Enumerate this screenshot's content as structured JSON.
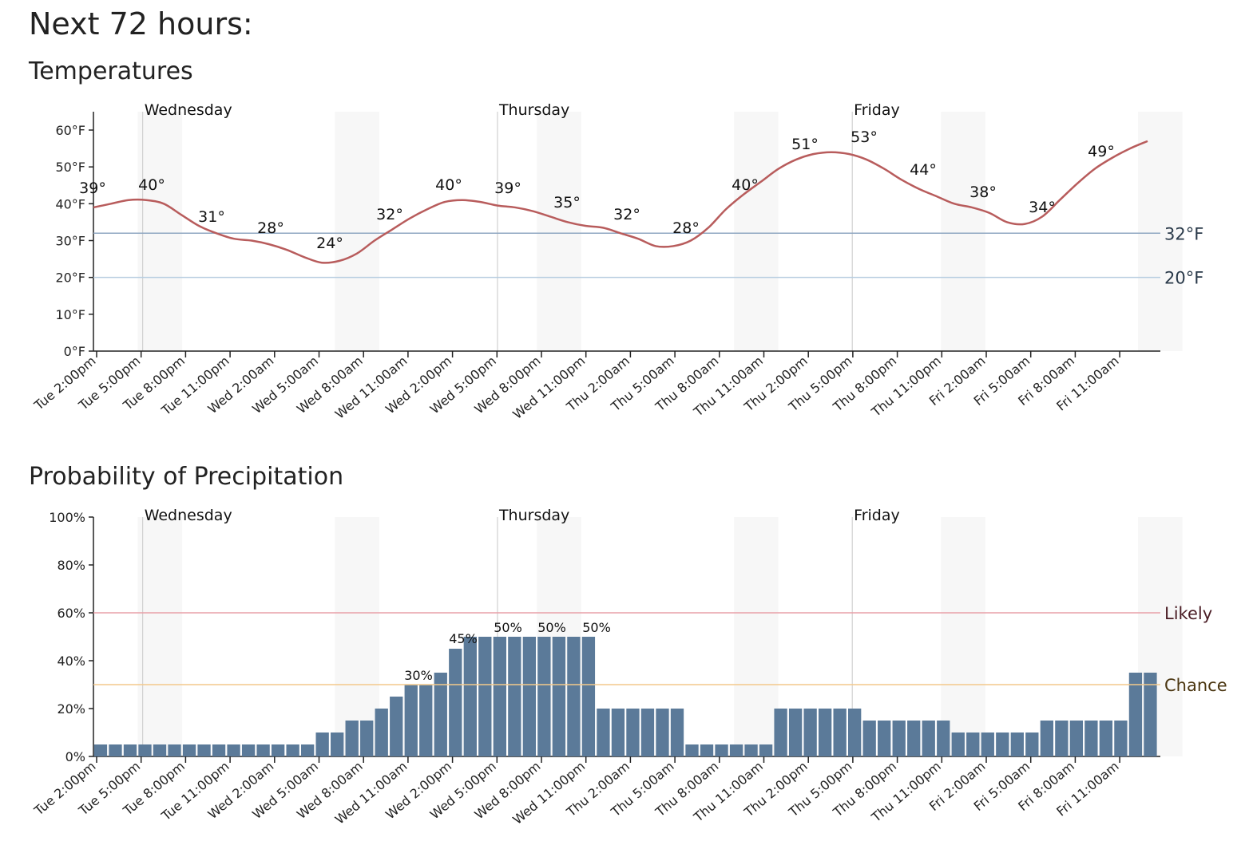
{
  "page": {
    "title": "Next 72 hours:"
  },
  "chart_data": [
    {
      "type": "line",
      "title": "Temperatures",
      "xlabel": "",
      "ylabel": "",
      "ylim": [
        0,
        60
      ],
      "y_ticks": [
        "0°F",
        "10°F",
        "20°F",
        "30°F",
        "40°F",
        "50°F",
        "60°F"
      ],
      "x_tick_labels": [
        "Tue 2:00pm",
        "Tue 5:00pm",
        "Tue 8:00pm",
        "Tue 11:00pm",
        "Wed 2:00am",
        "Wed 5:00am",
        "Wed 8:00am",
        "Wed 11:00am",
        "Wed 2:00pm",
        "Wed 5:00pm",
        "Wed 8:00pm",
        "Wed 11:00pm",
        "Thu 2:00am",
        "Thu 5:00am",
        "Thu 8:00am",
        "Thu 11:00am",
        "Thu 2:00pm",
        "Thu 5:00pm",
        "Thu 8:00pm",
        "Thu 11:00pm",
        "Fri 2:00am",
        "Fri 5:00am",
        "Fri 8:00am",
        "Fri 11:00am"
      ],
      "day_labels": [
        "Wednesday",
        "Thursday",
        "Friday"
      ],
      "series": [
        {
          "values": [
            39,
            40,
            41,
            41,
            40,
            37,
            34,
            32,
            30.5,
            30,
            29,
            27.5,
            25.5,
            24,
            24.5,
            26.5,
            30,
            33,
            36,
            38.5,
            40.5,
            41,
            40.5,
            39.5,
            39,
            38,
            36.5,
            35,
            34,
            33.5,
            32,
            30.5,
            28.5,
            28.5,
            30,
            33.5,
            38.5,
            42.5,
            46,
            49.5,
            52,
            53.5,
            54,
            53.5,
            52,
            49.5,
            46.5,
            44,
            42,
            40,
            39,
            37.5,
            35,
            34.5,
            36.5,
            41,
            45.5,
            49.5,
            52.5,
            55,
            57
          ]
        }
      ],
      "annotations": [
        "39°",
        "40°",
        "31°",
        "28°",
        "24°",
        "32°",
        "40°",
        "39°",
        "35°",
        "32°",
        "28°",
        "40°",
        "51°",
        "53°",
        "44°",
        "38°",
        "34°",
        "49°"
      ],
      "reference_lines": [
        {
          "value": 32,
          "label": "32°F",
          "color": "#8fa7c2"
        },
        {
          "value": 20,
          "label": "20°F",
          "color": "#b6cde0"
        }
      ],
      "line_color": "#b85c5c",
      "grid": false
    },
    {
      "type": "bar",
      "title": "Probability of Precipitation",
      "xlabel": "",
      "ylabel": "",
      "ylim": [
        0,
        100
      ],
      "y_ticks": [
        "0%",
        "20%",
        "40%",
        "60%",
        "80%",
        "100%"
      ],
      "x_tick_labels": [
        "Tue 2:00pm",
        "Tue 5:00pm",
        "Tue 8:00pm",
        "Tue 11:00pm",
        "Wed 2:00am",
        "Wed 5:00am",
        "Wed 8:00am",
        "Wed 11:00am",
        "Wed 2:00pm",
        "Wed 5:00pm",
        "Wed 8:00pm",
        "Wed 11:00pm",
        "Thu 2:00am",
        "Thu 5:00am",
        "Thu 8:00am",
        "Thu 11:00am",
        "Thu 2:00pm",
        "Thu 5:00pm",
        "Thu 8:00pm",
        "Thu 11:00pm",
        "Fri 2:00am",
        "Fri 5:00am",
        "Fri 8:00am",
        "Fri 11:00am"
      ],
      "day_labels": [
        "Wednesday",
        "Thursday",
        "Friday"
      ],
      "values": [
        5,
        5,
        5,
        5,
        5,
        5,
        5,
        5,
        5,
        5,
        5,
        5,
        5,
        5,
        5,
        10,
        10,
        15,
        15,
        20,
        25,
        30,
        30,
        35,
        45,
        50,
        50,
        50,
        50,
        50,
        50,
        50,
        50,
        50,
        20,
        20,
        20,
        20,
        20,
        20,
        5,
        5,
        5,
        5,
        5,
        5,
        20,
        20,
        20,
        20,
        20,
        20,
        15,
        15,
        15,
        15,
        15,
        15,
        10,
        10,
        10,
        10,
        10,
        10,
        15,
        15,
        15,
        15,
        15,
        15,
        35,
        35
      ],
      "annotations": [
        "30%",
        "45%",
        "50%",
        "50%",
        "50%"
      ],
      "reference_lines": [
        {
          "value": 60,
          "label": "Likely",
          "color": "#e8a0a8",
          "text_color": "#4a1c24"
        },
        {
          "value": 30,
          "label": "Chance",
          "color": "#f3c98b",
          "text_color": "#4a3510"
        }
      ],
      "bar_color": "#5b7a99",
      "grid": false
    }
  ]
}
